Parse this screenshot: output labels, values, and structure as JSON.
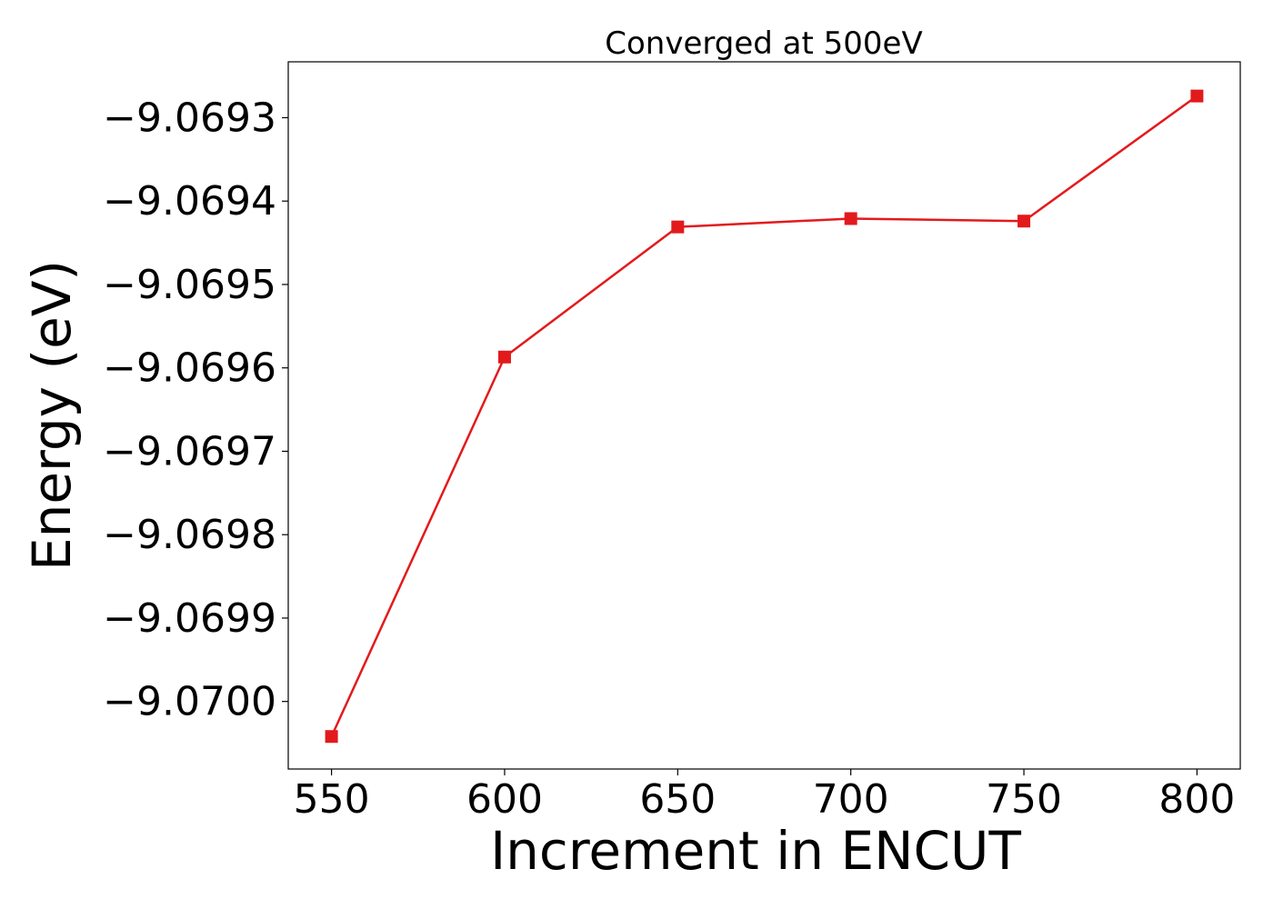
{
  "chart_data": {
    "type": "line",
    "title": "Converged at 500eV",
    "xlabel": "Increment in ENCUT",
    "ylabel": "Energy (eV)",
    "x": [
      550,
      600,
      650,
      700,
      750,
      800
    ],
    "y": [
      -9.070042,
      -9.069587,
      -9.069431,
      -9.069421,
      -9.069424,
      -9.069274
    ],
    "xlim": [
      537.5,
      812.5
    ],
    "ylim": [
      -9.070081,
      -9.069233
    ],
    "xticks": [
      550,
      600,
      650,
      700,
      750,
      800
    ],
    "xtick_labels": [
      "550",
      "600",
      "650",
      "700",
      "750",
      "800"
    ],
    "yticks": [
      -9.0693,
      -9.0694,
      -9.0695,
      -9.0696,
      -9.0697,
      -9.0698,
      -9.0699,
      -9.07
    ],
    "ytick_labels": [
      "−9.0693",
      "−9.0694",
      "−9.0695",
      "−9.0696",
      "−9.0697",
      "−9.0698",
      "−9.0699",
      "−9.0700"
    ],
    "series": [
      {
        "color": "#e31a1c",
        "marker": "square"
      }
    ],
    "grid": false
  }
}
